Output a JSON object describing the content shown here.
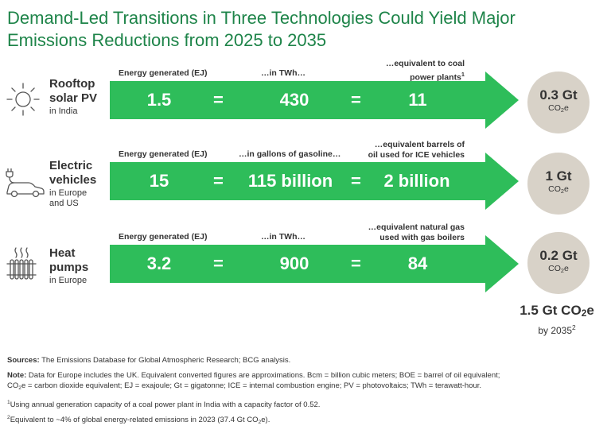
{
  "title_line1": "Demand-Led Transitions in Three Technologies Could Yield Major",
  "title_line2": "Emissions Reductions from 2025 to 2035",
  "rows": [
    {
      "name_line1": "Rooftop",
      "name_line2": "solar PV",
      "region_line1": "in India",
      "region_line2": "",
      "head1": "Energy generated (EJ)",
      "head2": "…in TWh…",
      "head3_line1": "…equivalent to coal",
      "head3_line2": "power plants",
      "head3_sup": "1",
      "value1": "1.5",
      "value2": "430",
      "value3": "11",
      "reduction": "0.3 Gt",
      "reduction_unit": "CO",
      "reduction_unit_sub": "2",
      "reduction_unit_tail": "e",
      "icon": "sun-icon"
    },
    {
      "name_line1": "Electric",
      "name_line2": "vehicles",
      "region_line1": "in Europe",
      "region_line2": "and US",
      "head1": "Energy generated (EJ)",
      "head2": "…in gallons of gasoline…",
      "head3_line1": "…equivalent barrels of",
      "head3_line2": "oil used for ICE vehicles",
      "head3_sup": "",
      "value1": "15",
      "value2": "115 billion",
      "value3": "2 billion",
      "reduction": "1 Gt",
      "reduction_unit": "CO",
      "reduction_unit_sub": "2",
      "reduction_unit_tail": "e",
      "icon": "electric-car-icon"
    },
    {
      "name_line1": "Heat",
      "name_line2": "pumps",
      "region_line1": "in Europe",
      "region_line2": "",
      "head1": "Energy generated (EJ)",
      "head2": "…in TWh…",
      "head3_line1": "…equivalent natural gas",
      "head3_line2": "used with gas boilers",
      "head3_sup": "",
      "value1": "3.2",
      "value2": "900",
      "value3": "84",
      "reduction": "0.2 Gt",
      "reduction_unit": "CO",
      "reduction_unit_sub": "2",
      "reduction_unit_tail": "e",
      "icon": "radiator-icon"
    }
  ],
  "equals_sign": "=",
  "total": {
    "value": "1.5 Gt CO",
    "sub": "2",
    "tail": "e",
    "by": "by 2035",
    "sup": "2"
  },
  "footer": {
    "sources_label": "Sources:",
    "sources_text": " The Emissions Database for Global Atmospheric Research; BCG analysis.",
    "note_label": "Note:",
    "note_text1": " Data for Europe includes the UK. Equivalent converted figures are approximations. Bcm = billion cubic meters; BOE = barrel of oil equivalent;",
    "note_text2_a": "CO",
    "note_text2_sub": "2",
    "note_text2_b": "e = carbon dioxide equivalent; EJ = exajoule; Gt = gigatonne; ICE = internal combustion engine; PV = photovoltaics; TWh = terawatt-hour.",
    "fn1_sup": "1",
    "fn1_text": "Using annual generation capacity of a coal power plant in India with a capacity factor of 0.52.",
    "fn2_sup": "2",
    "fn2_text_a": "Equivalent to ~4% of global energy-related emissions in 2023 (37.4 Gt CO",
    "fn2_sub": "2",
    "fn2_text_b": "e)."
  },
  "colors": {
    "title": "#1e8449",
    "arrow": "#2ebd5a",
    "circle": "#d8d2c8"
  }
}
